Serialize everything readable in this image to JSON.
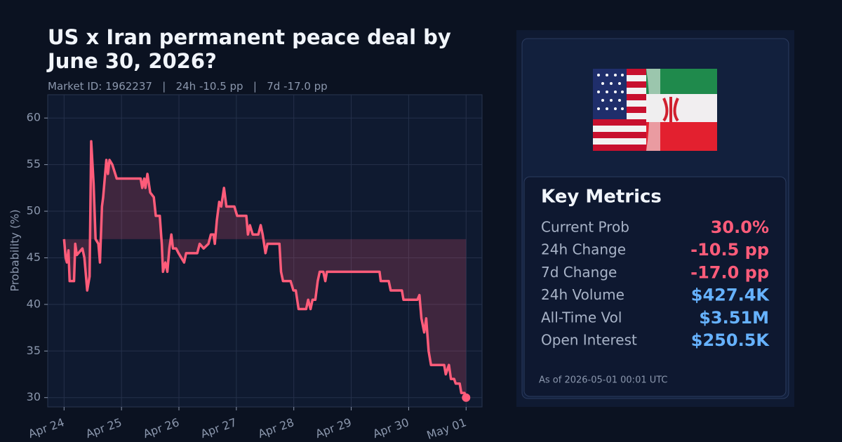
{
  "chart_data": {
    "type": "line",
    "title": "US x Iran permanent peace deal by June 30, 2026?",
    "subtitle": "Market ID: 1962237   |   24h -10.5 pp   |   7d -17.0 pp",
    "y_label": "Probability (%)",
    "ylim": [
      29,
      62.5
    ],
    "yticks": [
      30,
      35,
      40,
      45,
      50,
      55,
      60
    ],
    "xlim": [
      "Apr 23 17:10",
      "May 01 06:40"
    ],
    "xticks": [
      {
        "value": "Apr 24 00:00",
        "label": "Apr 24"
      },
      {
        "value": "Apr 25 00:00",
        "label": "Apr 25"
      },
      {
        "value": "Apr 26 00:00",
        "label": "Apr 26"
      },
      {
        "value": "Apr 27 00:00",
        "label": "Apr 27"
      },
      {
        "value": "Apr 28 00:00",
        "label": "Apr 28"
      },
      {
        "value": "Apr 29 00:00",
        "label": "Apr 29"
      },
      {
        "value": "Apr 30 00:00",
        "label": "Apr 30"
      },
      {
        "value": "May 01 00:00",
        "label": "May 01"
      }
    ],
    "grid": true,
    "series": [
      {
        "color": "#ff5c7a",
        "x": [
          "Apr 24 00:00",
          "Apr 24 00:40",
          "Apr 24 01:10",
          "Apr 24 01:50",
          "Apr 24 02:20",
          "Apr 24 04:10",
          "Apr 24 04:40",
          "Apr 24 05:20",
          "Apr 24 07:40",
          "Apr 24 08:30",
          "Apr 24 09:40",
          "Apr 24 10:40",
          "Apr 24 11:20",
          "Apr 24 12:20",
          "Apr 24 13:10",
          "Apr 24 14:20",
          "Apr 24 15:00",
          "Apr 24 15:50",
          "Apr 24 16:20",
          "Apr 24 17:10",
          "Apr 24 17:40",
          "Apr 24 18:20",
          "Apr 24 19:00",
          "Apr 24 20:10",
          "Apr 24 22:00",
          "Apr 25 08:00",
          "Apr 25 08:40",
          "Apr 25 09:30",
          "Apr 25 10:00",
          "Apr 25 10:50",
          "Apr 25 12:00",
          "Apr 25 13:30",
          "Apr 25 14:20",
          "Apr 25 16:00",
          "Apr 25 16:50",
          "Apr 25 17:20",
          "Apr 25 18:20",
          "Apr 25 19:10",
          "Apr 25 20:00",
          "Apr 25 20:50",
          "Apr 25 21:30",
          "Apr 25 22:50",
          "Apr 25 23:50",
          "Apr 26 02:10",
          "Apr 26 03:00",
          "Apr 26 07:40",
          "Apr 26 08:40",
          "Apr 26 10:20",
          "Apr 26 12:20",
          "Apr 26 13:20",
          "Apr 26 14:30",
          "Apr 26 15:00",
          "Apr 26 15:50",
          "Apr 26 16:50",
          "Apr 26 17:40",
          "Apr 26 18:50",
          "Apr 26 19:50",
          "Apr 26 23:10",
          "Apr 27 00:20",
          "Apr 27 04:10",
          "Apr 27 04:50",
          "Apr 27 05:40",
          "Apr 27 06:50",
          "Apr 27 09:10",
          "Apr 27 10:10",
          "Apr 27 11:00",
          "Apr 27 12:10",
          "Apr 27 13:00",
          "Apr 27 18:00",
          "Apr 27 18:40",
          "Apr 27 19:30",
          "Apr 27 22:40",
          "Apr 27 23:50",
          "Apr 28 00:50",
          "Apr 28 02:00",
          "Apr 28 05:10",
          "Apr 28 06:00",
          "Apr 28 07:00",
          "Apr 28 07:50",
          "Apr 28 09:00",
          "Apr 28 10:00",
          "Apr 28 10:50",
          "Apr 28 12:20",
          "Apr 28 13:10",
          "Apr 28 13:50",
          "Apr 29 11:50",
          "Apr 29 12:20",
          "Apr 29 15:40",
          "Apr 29 16:30",
          "Apr 29 21:10",
          "Apr 29 21:50",
          "Apr 30 03:40",
          "Apr 30 04:30",
          "Apr 30 05:20",
          "Apr 30 06:30",
          "Apr 30 07:20",
          "Apr 30 08:20",
          "Apr 30 09:20",
          "Apr 30 14:50",
          "Apr 30 15:30",
          "Apr 30 16:50",
          "Apr 30 17:40",
          "Apr 30 19:00",
          "Apr 30 19:40",
          "Apr 30 21:20",
          "Apr 30 22:00",
          "Apr 30 23:20",
          "May 01 00:00"
        ],
        "values": [
          47.0,
          45.0,
          44.5,
          45.8,
          42.5,
          42.5,
          46.5,
          45.3,
          46.0,
          45.0,
          41.5,
          43.0,
          57.5,
          53.0,
          47.0,
          46.5,
          44.5,
          50.5,
          51.5,
          54.0,
          55.5,
          54.0,
          55.5,
          55.0,
          53.5,
          53.5,
          52.5,
          53.5,
          52.5,
          54.0,
          52.0,
          51.5,
          49.5,
          49.5,
          46.5,
          43.5,
          44.5,
          43.5,
          46.0,
          47.5,
          46.0,
          46.0,
          45.5,
          44.5,
          45.5,
          45.5,
          46.5,
          46.0,
          46.5,
          47.5,
          47.5,
          46.5,
          49.0,
          51.0,
          50.5,
          52.5,
          50.5,
          50.5,
          49.5,
          49.5,
          47.5,
          48.5,
          47.5,
          47.5,
          48.5,
          47.5,
          45.5,
          46.5,
          46.5,
          43.5,
          42.5,
          42.5,
          41.5,
          41.5,
          39.5,
          39.5,
          40.5,
          39.5,
          40.5,
          40.5,
          42.5,
          43.5,
          43.5,
          42.5,
          43.5,
          43.5,
          42.5,
          42.5,
          41.5,
          41.5,
          40.5,
          40.5,
          41.0,
          38.5,
          37.0,
          38.5,
          35.0,
          33.5,
          33.5,
          32.5,
          33.5,
          32.0,
          32.0,
          31.5,
          31.5,
          30.5,
          30.5,
          30.0
        ]
      }
    ]
  },
  "panel": {
    "metrics_title": "Key Metrics",
    "metrics": [
      {
        "label": "Current Prob",
        "value": "30.0%",
        "color": "#ff5c7a"
      },
      {
        "label": "24h Change",
        "value": "-10.5 pp",
        "color": "#ff5c7a"
      },
      {
        "label": "7d Change",
        "value": "-17.0 pp",
        "color": "#ff5c7a"
      },
      {
        "label": "24h Volume",
        "value": "$427.4K",
        "color": "#66b2ff"
      },
      {
        "label": "All-Time Vol",
        "value": "$3.51M",
        "color": "#66b2ff"
      },
      {
        "label": "Open Interest",
        "value": "$250.5K",
        "color": "#66b2ff"
      }
    ],
    "as_of": "As of 2026-05-01 00:01 UTC"
  }
}
